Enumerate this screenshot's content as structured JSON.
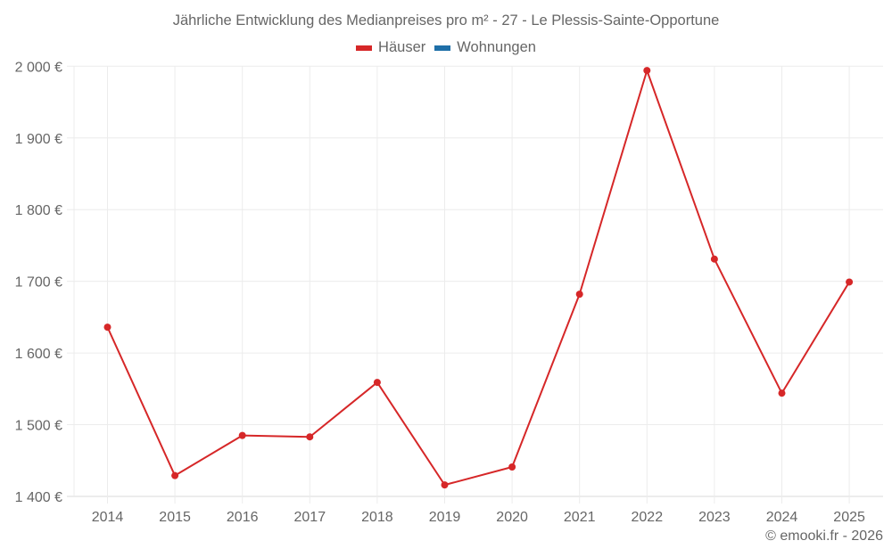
{
  "chart_data": {
    "type": "line",
    "title": "Jährliche Entwicklung des Medianpreises pro m² - 27 - Le Plessis-Sainte-Opportune",
    "xlabel": "",
    "ylabel": "",
    "categories": [
      "2014",
      "2015",
      "2016",
      "2017",
      "2018",
      "2019",
      "2020",
      "2021",
      "2022",
      "2023",
      "2024",
      "2025"
    ],
    "series": [
      {
        "name": "Häuser",
        "color": "#d62728",
        "values": [
          1636,
          1429,
          1485,
          1483,
          1559,
          1416,
          1441,
          1682,
          1994,
          1731,
          1544,
          1699
        ]
      },
      {
        "name": "Wohnungen",
        "color": "#1f6fa8",
        "values": []
      }
    ],
    "ylim": [
      1400,
      2000
    ],
    "yticks": [
      1400,
      1500,
      1600,
      1700,
      1800,
      1900,
      2000
    ],
    "ytick_labels": [
      "1 400 €",
      "1 500 €",
      "1 600 €",
      "1 700 €",
      "1 800 €",
      "1 900 €",
      "2 000 €"
    ],
    "grid": true,
    "legend_position": "top-center"
  },
  "legend": {
    "items": [
      {
        "label": "Häuser",
        "color": "#d62728"
      },
      {
        "label": "Wohnungen",
        "color": "#1f6fa8"
      }
    ]
  },
  "credit": "© emooki.fr - 2026"
}
